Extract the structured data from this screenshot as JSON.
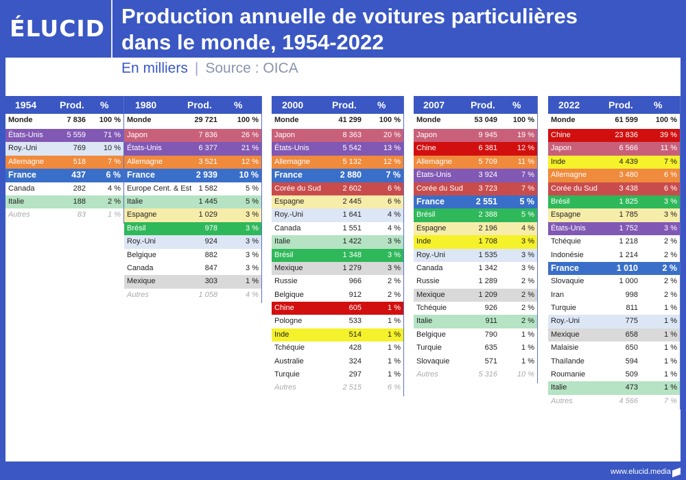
{
  "header": {
    "logo": "ÉLUCID",
    "title_line1": "Production annuelle de voitures particulières",
    "title_line2": "dans le monde, 1954-2022",
    "subtitle_unit": "En milliers",
    "subtitle_sep": "|",
    "subtitle_source": "Source : OICA"
  },
  "footer": {
    "url": "www.elucid.media"
  },
  "colors": {
    "header_bg": "#3a57c4",
    "Japon": "#c9607a",
    "États-Unis": "#8158b4",
    "Allemagne": "#f08a3c",
    "France": "#3a6fc9",
    "Roy.-Uni": "#dde6f5",
    "Italie": "#b5e3c3",
    "Espagne": "#f7edaa",
    "Mexique": "#d9d9d9",
    "Brésil": "#2fb85a",
    "Chine": "#d20f0f",
    "Inde": "#f5f12a",
    "Corée du Sud": "#c94c4c"
  },
  "chart_data": {
    "type": "table",
    "columns": [
      "Prod.",
      "%"
    ],
    "tables": [
      {
        "year": "1954",
        "rows": [
          [
            "Monde",
            "7 836",
            "100 %"
          ],
          [
            "États-Unis",
            "5 559",
            "71 %"
          ],
          [
            "Roy.-Uni",
            "769",
            "10 %"
          ],
          [
            "Allemagne",
            "518",
            "7 %"
          ],
          [
            "France",
            "437",
            "6 %"
          ],
          [
            "Canada",
            "282",
            "4 %"
          ],
          [
            "Italie",
            "188",
            "2 %"
          ],
          [
            "Autres",
            "83",
            "1 %"
          ]
        ]
      },
      {
        "year": "1980",
        "rows": [
          [
            "Monde",
            "29 721",
            "100 %"
          ],
          [
            "Japon",
            "7 836",
            "26 %"
          ],
          [
            "États-Unis",
            "6 377",
            "21 %"
          ],
          [
            "Allemagne",
            "3 521",
            "12 %"
          ],
          [
            "France",
            "2 939",
            "10 %"
          ],
          [
            "Europe Cent. & Est",
            "1 582",
            "5 %"
          ],
          [
            "Italie",
            "1 445",
            "5 %"
          ],
          [
            "Espagne",
            "1 029",
            "3 %"
          ],
          [
            "Brésil",
            "978",
            "3 %"
          ],
          [
            "Roy.-Uni",
            "924",
            "3 %"
          ],
          [
            "Belgique",
            "882",
            "3 %"
          ],
          [
            "Canada",
            "847",
            "3 %"
          ],
          [
            "Mexique",
            "303",
            "1 %"
          ],
          [
            "Autres",
            "1 058",
            "4 %"
          ]
        ]
      },
      {
        "year": "2000",
        "rows": [
          [
            "Monde",
            "41 299",
            "100 %"
          ],
          [
            "Japon",
            "8 363",
            "20 %"
          ],
          [
            "États-Unis",
            "5 542",
            "13 %"
          ],
          [
            "Allemagne",
            "5 132",
            "12 %"
          ],
          [
            "France",
            "2 880",
            "7 %"
          ],
          [
            "Corée du Sud",
            "2 602",
            "6 %"
          ],
          [
            "Espagne",
            "2 445",
            "6 %"
          ],
          [
            "Roy.-Uni",
            "1 641",
            "4 %"
          ],
          [
            "Canada",
            "1 551",
            "4 %"
          ],
          [
            "Italie",
            "1 422",
            "3 %"
          ],
          [
            "Brésil",
            "1 348",
            "3 %"
          ],
          [
            "Mexique",
            "1 279",
            "3 %"
          ],
          [
            "Russie",
            "966",
            "2 %"
          ],
          [
            "Belgique",
            "912",
            "2 %"
          ],
          [
            "Chine",
            "605",
            "1 %"
          ],
          [
            "Pologne",
            "533",
            "1 %"
          ],
          [
            "Inde",
            "514",
            "1 %"
          ],
          [
            "Tchéquie",
            "428",
            "1 %"
          ],
          [
            "Australie",
            "324",
            "1 %"
          ],
          [
            "Turquie",
            "297",
            "1 %"
          ],
          [
            "Autres",
            "2 515",
            "6 %"
          ]
        ]
      },
      {
        "year": "2007",
        "rows": [
          [
            "Monde",
            "53 049",
            "100 %"
          ],
          [
            "Japon",
            "9 945",
            "19 %"
          ],
          [
            "Chine",
            "6 381",
            "12 %"
          ],
          [
            "Allemagne",
            "5 709",
            "11 %"
          ],
          [
            "États-Unis",
            "3 924",
            "7 %"
          ],
          [
            "Corée du Sud",
            "3 723",
            "7 %"
          ],
          [
            "France",
            "2 551",
            "5 %"
          ],
          [
            "Brésil",
            "2 388",
            "5 %"
          ],
          [
            "Espagne",
            "2 196",
            "4 %"
          ],
          [
            "Inde",
            "1 708",
            "3 %"
          ],
          [
            "Roy.-Uni",
            "1 535",
            "3 %"
          ],
          [
            "Canada",
            "1 342",
            "3 %"
          ],
          [
            "Russie",
            "1 289",
            "2 %"
          ],
          [
            "Mexique",
            "1 209",
            "2 %"
          ],
          [
            "Tchéquie",
            "926",
            "2 %"
          ],
          [
            "Italie",
            "911",
            "2 %"
          ],
          [
            "Belgique",
            "790",
            "1 %"
          ],
          [
            "Turquie",
            "635",
            "1 %"
          ],
          [
            "Slovaquie",
            "571",
            "1 %"
          ],
          [
            "Autres",
            "5 316",
            "10 %"
          ]
        ]
      },
      {
        "year": "2022",
        "rows": [
          [
            "Monde",
            "61 599",
            "100 %"
          ],
          [
            "Chine",
            "23 836",
            "39 %"
          ],
          [
            "Japon",
            "6 566",
            "11 %"
          ],
          [
            "Inde",
            "4 439",
            "7 %"
          ],
          [
            "Allemagne",
            "3 480",
            "6 %"
          ],
          [
            "Corée du Sud",
            "3 438",
            "6 %"
          ],
          [
            "Brésil",
            "1 825",
            "3 %"
          ],
          [
            "Espagne",
            "1 785",
            "3 %"
          ],
          [
            "États-Unis",
            "1 752",
            "3 %"
          ],
          [
            "Tchéquie",
            "1 218",
            "2 %"
          ],
          [
            "Indonésie",
            "1 214",
            "2 %"
          ],
          [
            "France",
            "1 010",
            "2 %"
          ],
          [
            "Slovaquie",
            "1 000",
            "2 %"
          ],
          [
            "Iran",
            "998",
            "2 %"
          ],
          [
            "Turquie",
            "811",
            "1 %"
          ],
          [
            "Roy.-Uni",
            "775",
            "1 %"
          ],
          [
            "Mexique",
            "658",
            "1 %"
          ],
          [
            "Malaisie",
            "650",
            "1 %"
          ],
          [
            "Thaïlande",
            "594",
            "1 %"
          ],
          [
            "Roumanie",
            "509",
            "1 %"
          ],
          [
            "Italie",
            "473",
            "1 %"
          ],
          [
            "Autres",
            "4 566",
            "7 %"
          ]
        ]
      }
    ]
  }
}
